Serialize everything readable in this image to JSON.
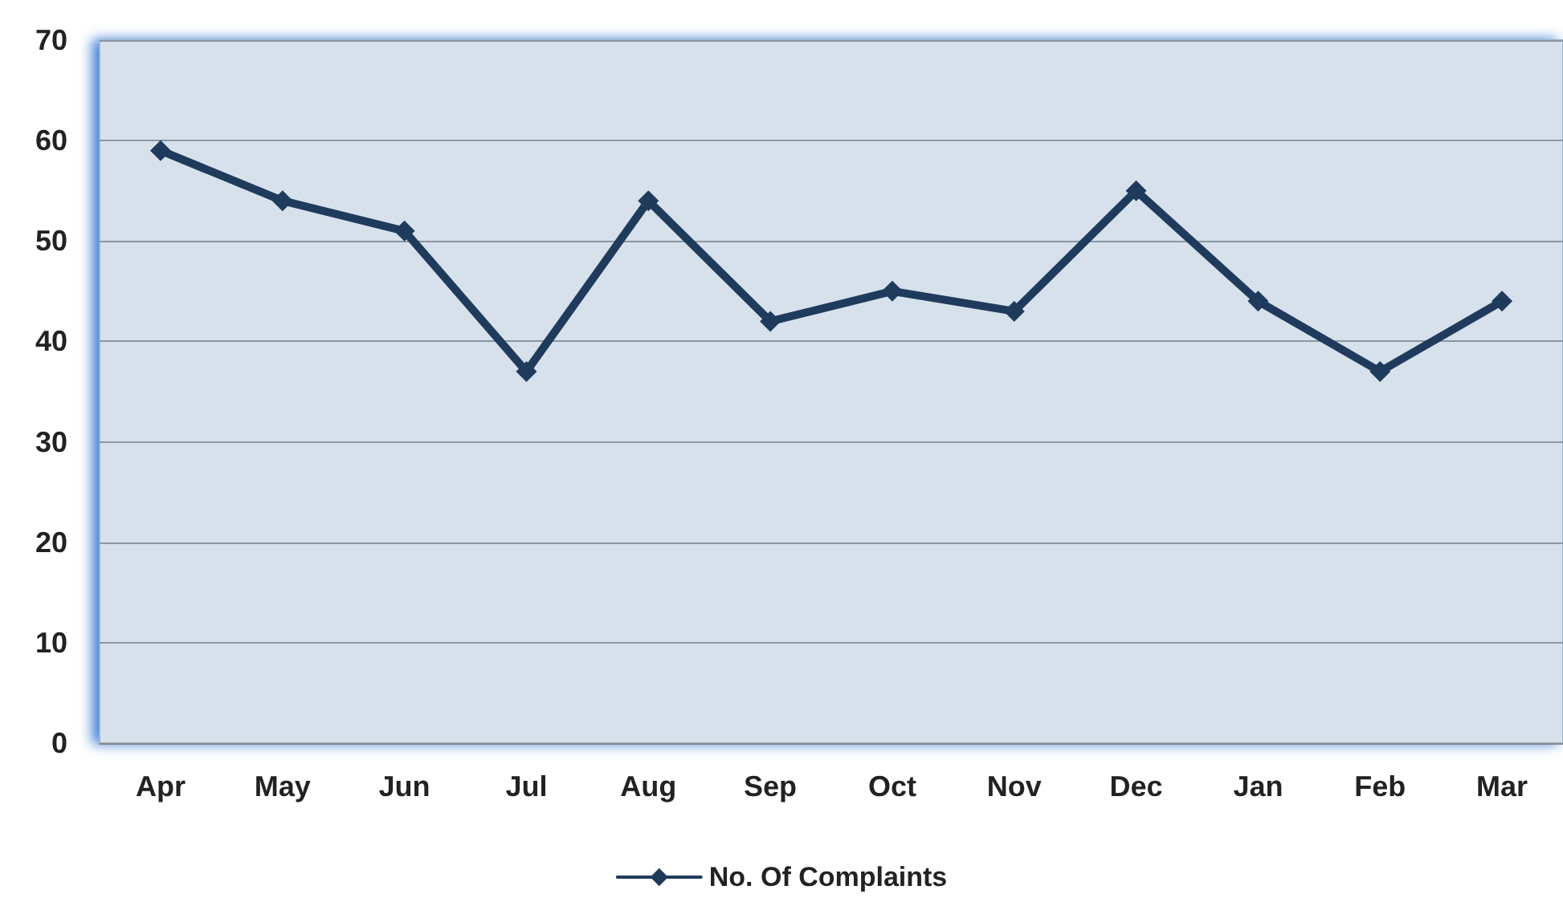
{
  "chart_data": {
    "type": "line",
    "categories": [
      "Apr",
      "May",
      "Jun",
      "Jul",
      "Aug",
      "Sep",
      "Oct",
      "Nov",
      "Dec",
      "Jan",
      "Feb",
      "Mar"
    ],
    "series": [
      {
        "name": "No. Of Complaints",
        "color": "#1f3b5c",
        "values": [
          59,
          54,
          51,
          37,
          54,
          42,
          45,
          43,
          55,
          44,
          37,
          44
        ]
      }
    ],
    "ylim": [
      0,
      70
    ],
    "yticks": [
      0,
      10,
      20,
      30,
      40,
      50,
      60,
      70
    ],
    "grid": "y",
    "legend": "bottom",
    "marker": "diamond",
    "line_style": "solid"
  }
}
